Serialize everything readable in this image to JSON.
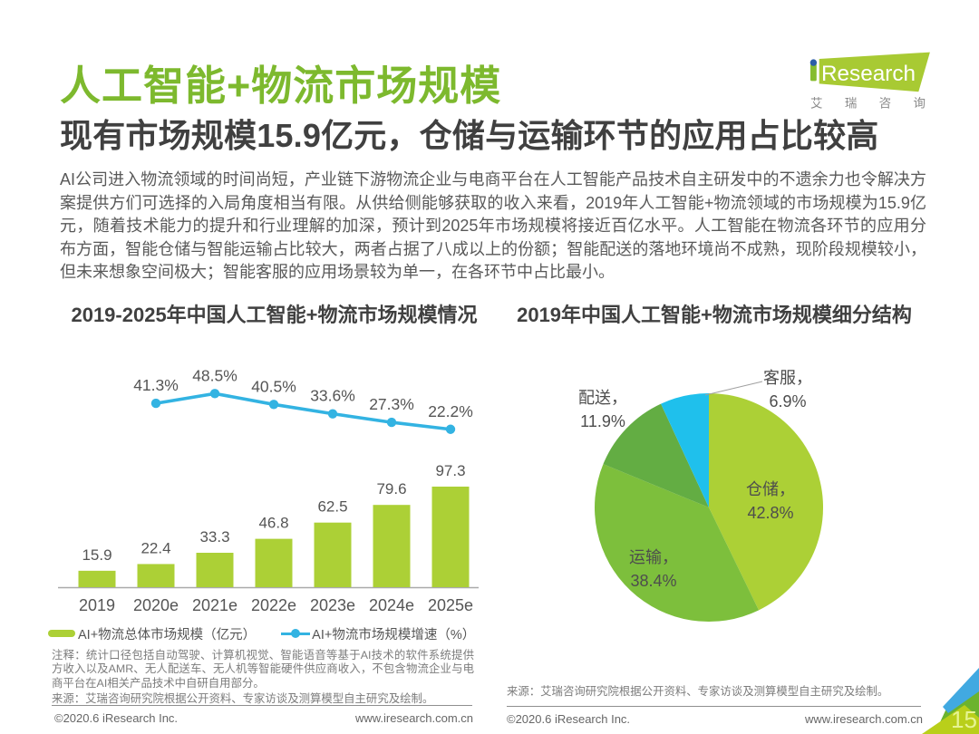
{
  "page": {
    "title": "人工智能+物流市场规模",
    "subtitle": "现有市场规模15.9亿元，仓储与运输环节的应用占比较高",
    "body": "AI公司进入物流领域的时间尚短，产业链下游物流企业与电商平台在人工智能产品技术自主研发中的不遗余力也令解决方案提供方们可选择的入局角度相当有限。从供给侧能够获取的收入来看，2019年人工智能+物流领域的市场规模为15.9亿元，随着技术能力的提升和行业理解的加深，预计到2025年市场规模将接近百亿水平。人工智能在物流各环节的应用分布方面，智能仓储与智能运输占比较大，两者占据了八成以上的份额；智能配送的落地环境尚不成熟，现阶段规模较小，但未来想象空间极大；智能客服的应用场景较为单一，在各环节中占比最小。",
    "page_number": "15"
  },
  "logo": {
    "brand_i": "i",
    "brand_rest": "Research",
    "chinese": "艾瑞咨询",
    "banner_color": "#A8CA33",
    "i_color": "#86BC2F",
    "dot_color": "#2B5DA7",
    "chinese_color": "#8A8A8A"
  },
  "footer": {
    "copyright": "©2020.6 iResearch Inc.",
    "website": "www.iresearch.com.cn"
  },
  "colors": {
    "title_green": "#7DB92E",
    "bar_green": "#ACD036",
    "line_cyan": "#33B3E2",
    "text_dark": "#404040",
    "text_gray": "#595959"
  },
  "chart_data": [
    {
      "type": "bar+line",
      "title": "2019-2025年中国人工智能+物流市场规模情况",
      "categories": [
        "2019",
        "2020e",
        "2021e",
        "2022e",
        "2023e",
        "2024e",
        "2025e"
      ],
      "series": [
        {
          "name": "AI+物流总体市场规模（亿元）",
          "type": "bar",
          "values": [
            15.9,
            22.4,
            33.3,
            46.8,
            62.5,
            79.6,
            97.3
          ],
          "color": "#ACD036"
        },
        {
          "name": "AI+物流市场规模增速（%）",
          "type": "line",
          "values": [
            null,
            41.3,
            48.5,
            40.5,
            33.6,
            27.3,
            22.2
          ],
          "unit": "%",
          "color": "#33B3E2"
        }
      ],
      "ylim": [
        0,
        110
      ],
      "grid": false,
      "legend_position": "bottom",
      "notes": "注释：统计口径包括自动驾驶、计算机视觉、智能语音等基于AI技术的软件系统提供方收入以及AMR、无人配送车、无人机等智能硬件供应商收入，不包含物流企业与电商平台在AI相关产品技术中自研自用部分。",
      "source": "来源：艾瑞咨询研究院根据公开资料、专家访谈及测算模型自主研究及绘制。"
    },
    {
      "type": "pie",
      "title": "2019年中国人工智能+物流市场规模细分结构",
      "slices": [
        {
          "key": "warehousing",
          "label": "仓储",
          "value": 42.8,
          "color": "#ACD036",
          "label_position": "inside"
        },
        {
          "key": "transport",
          "label": "运输",
          "value": 38.4,
          "color": "#7DBF3C",
          "label_position": "inside"
        },
        {
          "key": "delivery",
          "label": "配送",
          "value": 11.9,
          "color": "#63AD43",
          "label_position": "outside"
        },
        {
          "key": "customer-service",
          "label": "客服",
          "value": 6.9,
          "color": "#1FC0EC",
          "label_position": "outside"
        }
      ],
      "start_angle_deg": 0,
      "direction": "clockwise",
      "source": "来源：艾瑞咨询研究院根据公开资料、专家访谈及测算模型自主研究及绘制。"
    }
  ]
}
